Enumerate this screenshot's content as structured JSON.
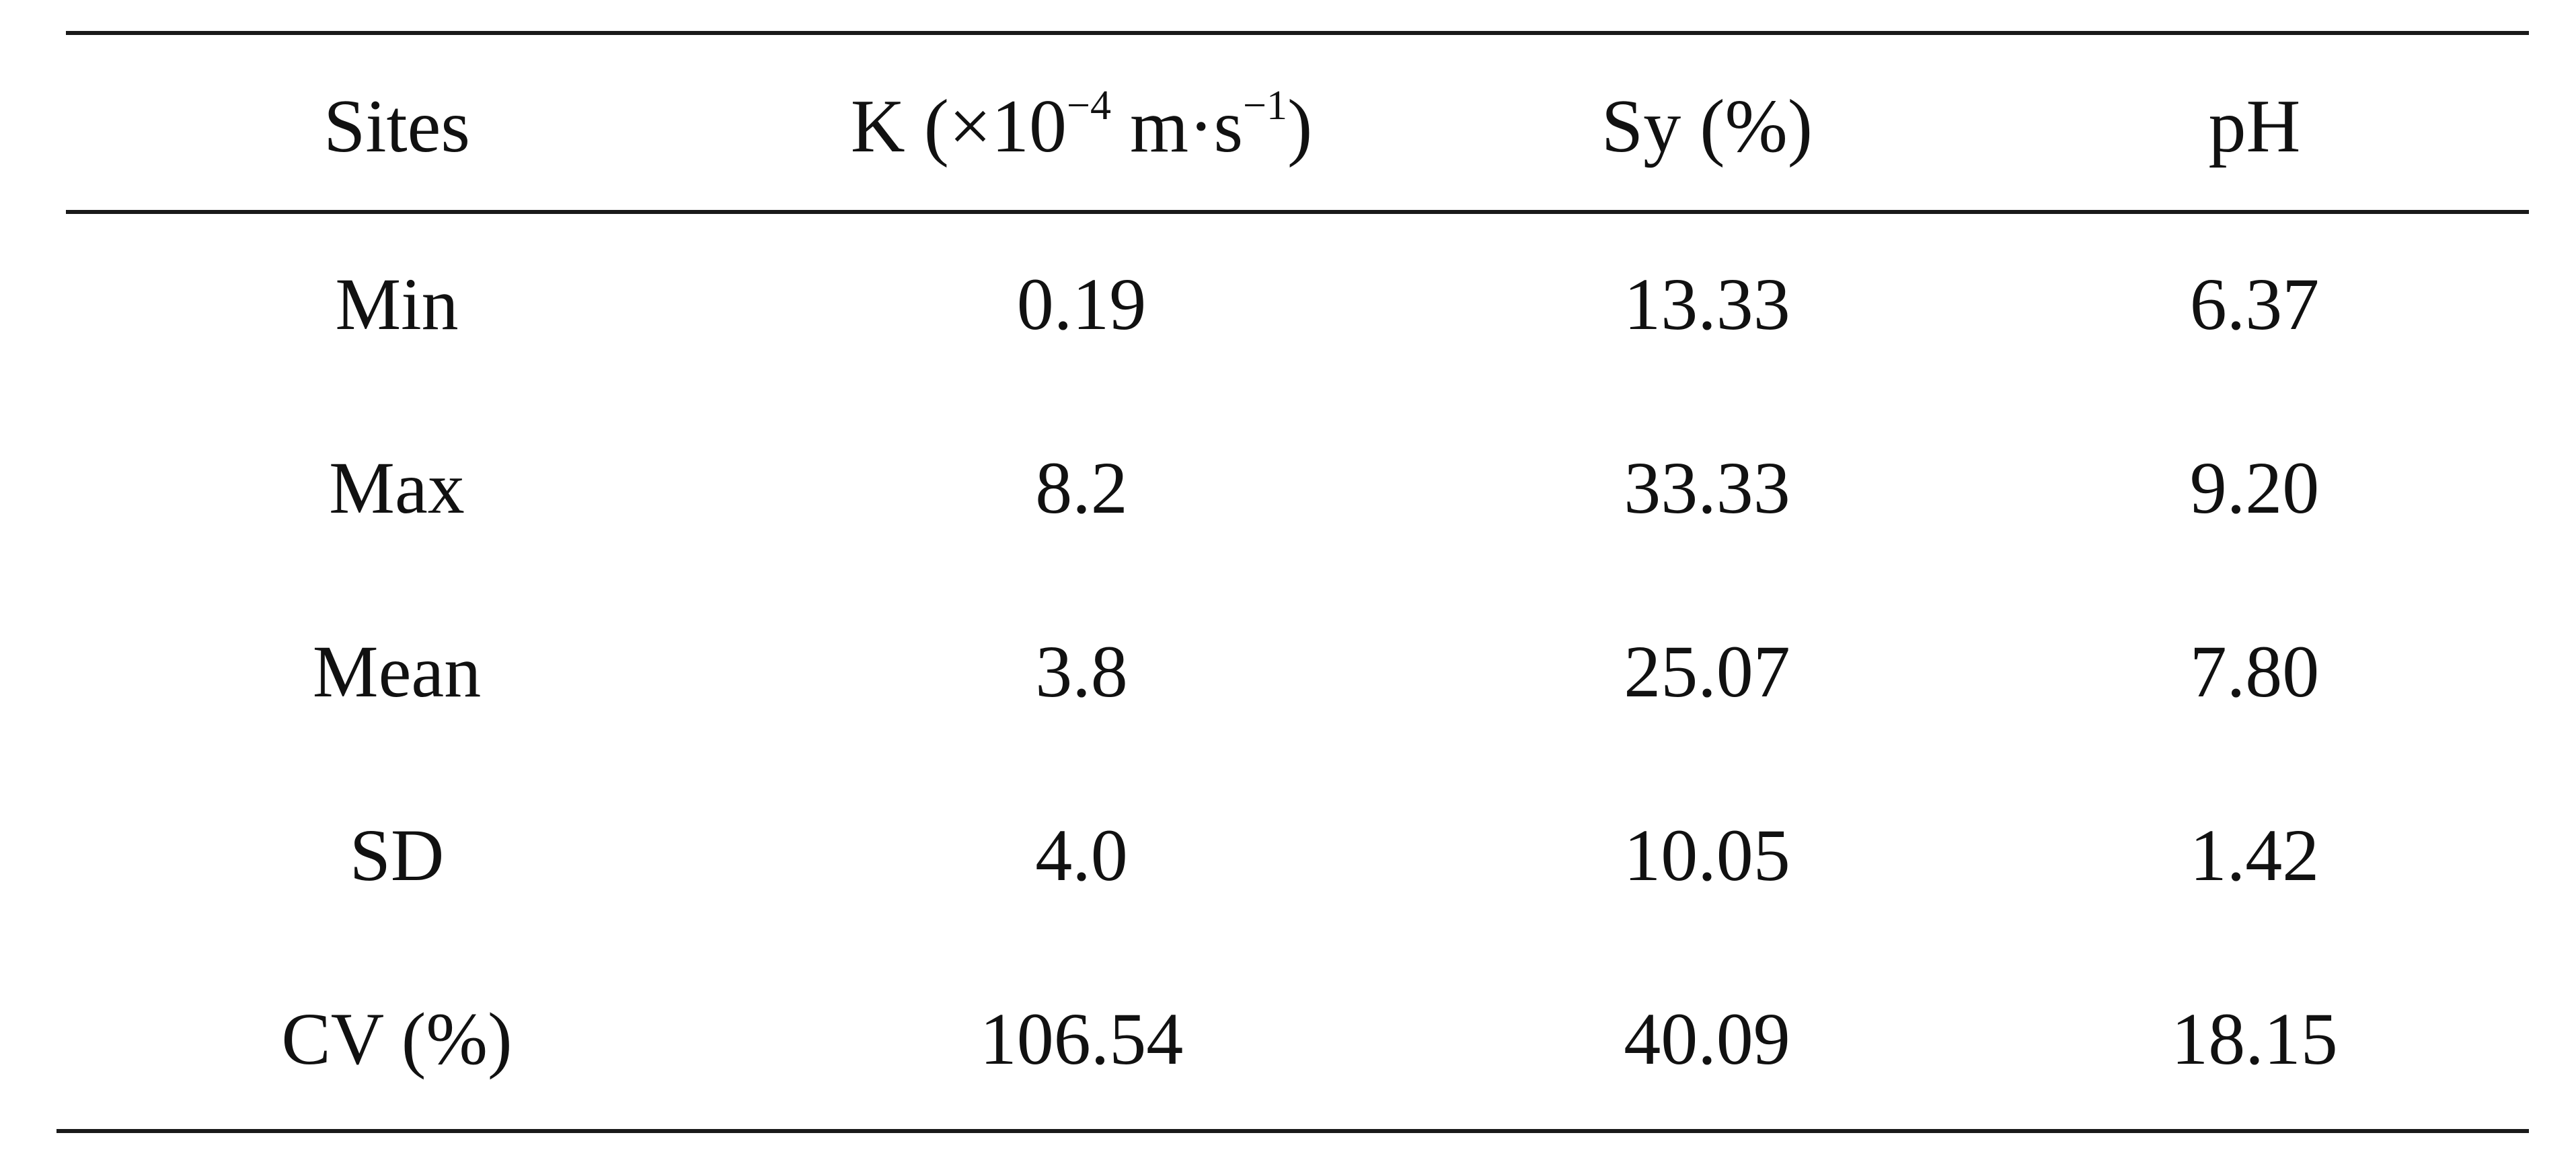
{
  "table": {
    "headers": {
      "sites": "Sites",
      "k_prefix": "K (×10",
      "k_exp1": "−4",
      "k_mid": " m·s",
      "k_exp2": "−1",
      "k_suffix": ")",
      "sy": "Sy (%)",
      "ph": "pH"
    },
    "rows": [
      {
        "site": "Min",
        "k": "0.19",
        "sy": "13.33",
        "ph": "6.37"
      },
      {
        "site": "Max",
        "k": "8.2",
        "sy": "33.33",
        "ph": "9.20"
      },
      {
        "site": "Mean",
        "k": "3.8",
        "sy": "25.07",
        "ph": "7.80"
      },
      {
        "site": "SD",
        "k": "4.0",
        "sy": "10.05",
        "ph": "1.42"
      },
      {
        "site": "CV (%)",
        "k": "106.54",
        "sy": "40.09",
        "ph": "18.15"
      }
    ]
  }
}
